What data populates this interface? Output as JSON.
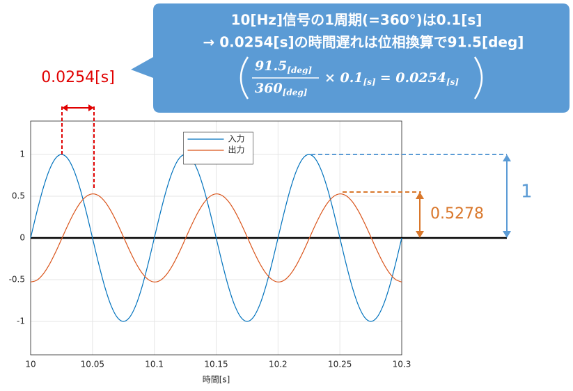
{
  "chart_data": {
    "type": "line",
    "xlabel": "時間[s]",
    "x": [
      10,
      10.005,
      10.01,
      10.015,
      10.02,
      10.025,
      10.03,
      10.035,
      10.04,
      10.045,
      10.05,
      10.055,
      10.06,
      10.065,
      10.07,
      10.075,
      10.08,
      10.085,
      10.09,
      10.095,
      10.1,
      10.105,
      10.11,
      10.115,
      10.12,
      10.125,
      10.13,
      10.135,
      10.14,
      10.145,
      10.15,
      10.155,
      10.16,
      10.165,
      10.17,
      10.175,
      10.18,
      10.185,
      10.19,
      10.195,
      10.2,
      10.205,
      10.21,
      10.215,
      10.22,
      10.225,
      10.23,
      10.235,
      10.24,
      10.245,
      10.25,
      10.255,
      10.26,
      10.265,
      10.27,
      10.275,
      10.28,
      10.285,
      10.29,
      10.295,
      10.3
    ],
    "series": [
      {
        "name": "入力",
        "color": "#0072bd",
        "values": [
          0,
          0.309,
          0.588,
          0.809,
          0.951,
          1,
          0.951,
          0.809,
          0.588,
          0.309,
          0,
          -0.309,
          -0.588,
          -0.809,
          -0.951,
          -1,
          -0.951,
          -0.809,
          -0.588,
          -0.309,
          0,
          0.309,
          0.588,
          0.809,
          0.951,
          1,
          0.951,
          0.809,
          0.588,
          0.309,
          0,
          -0.309,
          -0.588,
          -0.809,
          -0.951,
          -1,
          -0.951,
          -0.809,
          -0.588,
          -0.309,
          0,
          0.309,
          0.588,
          0.809,
          0.951,
          1,
          0.951,
          0.809,
          0.588,
          0.309,
          0,
          -0.309,
          -0.588,
          -0.809,
          -0.951,
          -1,
          -0.951,
          -0.809,
          -0.588,
          -0.309,
          0
        ]
      },
      {
        "name": "出力",
        "color": "#d95319",
        "values": [
          -0.5276,
          -0.5061,
          -0.435,
          -0.3213,
          -0.1762,
          -0.0138,
          0.1499,
          0.2989,
          0.4188,
          0.4975,
          0.5276,
          0.5061,
          0.435,
          0.3213,
          0.1762,
          0.0138,
          -0.1499,
          -0.2989,
          -0.4188,
          -0.4975,
          -0.5276,
          -0.5061,
          -0.435,
          -0.3213,
          -0.1762,
          -0.0138,
          0.1499,
          0.2989,
          0.4188,
          0.4975,
          0.5276,
          0.5061,
          0.435,
          0.3213,
          0.1762,
          0.0138,
          -0.1499,
          -0.2989,
          -0.4188,
          -0.4975,
          -0.5276,
          -0.5061,
          -0.435,
          -0.3213,
          -0.1762,
          -0.0138,
          0.1499,
          0.2989,
          0.4188,
          0.4975,
          0.5276,
          0.5061,
          0.435,
          0.3213,
          0.1762,
          0.0138,
          -0.1499,
          -0.2989,
          -0.4188,
          -0.4975,
          -0.5276
        ]
      }
    ],
    "xlim": [
      10,
      10.3
    ],
    "xticks": [
      10,
      10.05,
      10.1,
      10.15,
      10.2,
      10.25,
      10.3
    ],
    "ylim": [
      -1.4,
      1.4
    ],
    "yticks": [
      -1,
      -0.5,
      0,
      0.5,
      1
    ],
    "grid": true,
    "legend": "upper center",
    "annotations": {
      "callout_line1": "10[Hz]信号の1周期(=360°)は0.1[s]",
      "callout_line2": "→ 0.0254[s]の時間遅れは位相換算で91.5[deg]",
      "formula": {
        "numerator": "91.5",
        "numerator_unit": "[deg]",
        "denominator": "360",
        "denominator_unit": "[deg]",
        "times": "× 0.1",
        "times_unit": "[s]",
        "equals": "= 0.0254",
        "equals_unit": "[s]"
      },
      "delay_label": "0.0254[s]",
      "input_amplitude_label": "1",
      "output_amplitude_label": "0.5278"
    }
  }
}
